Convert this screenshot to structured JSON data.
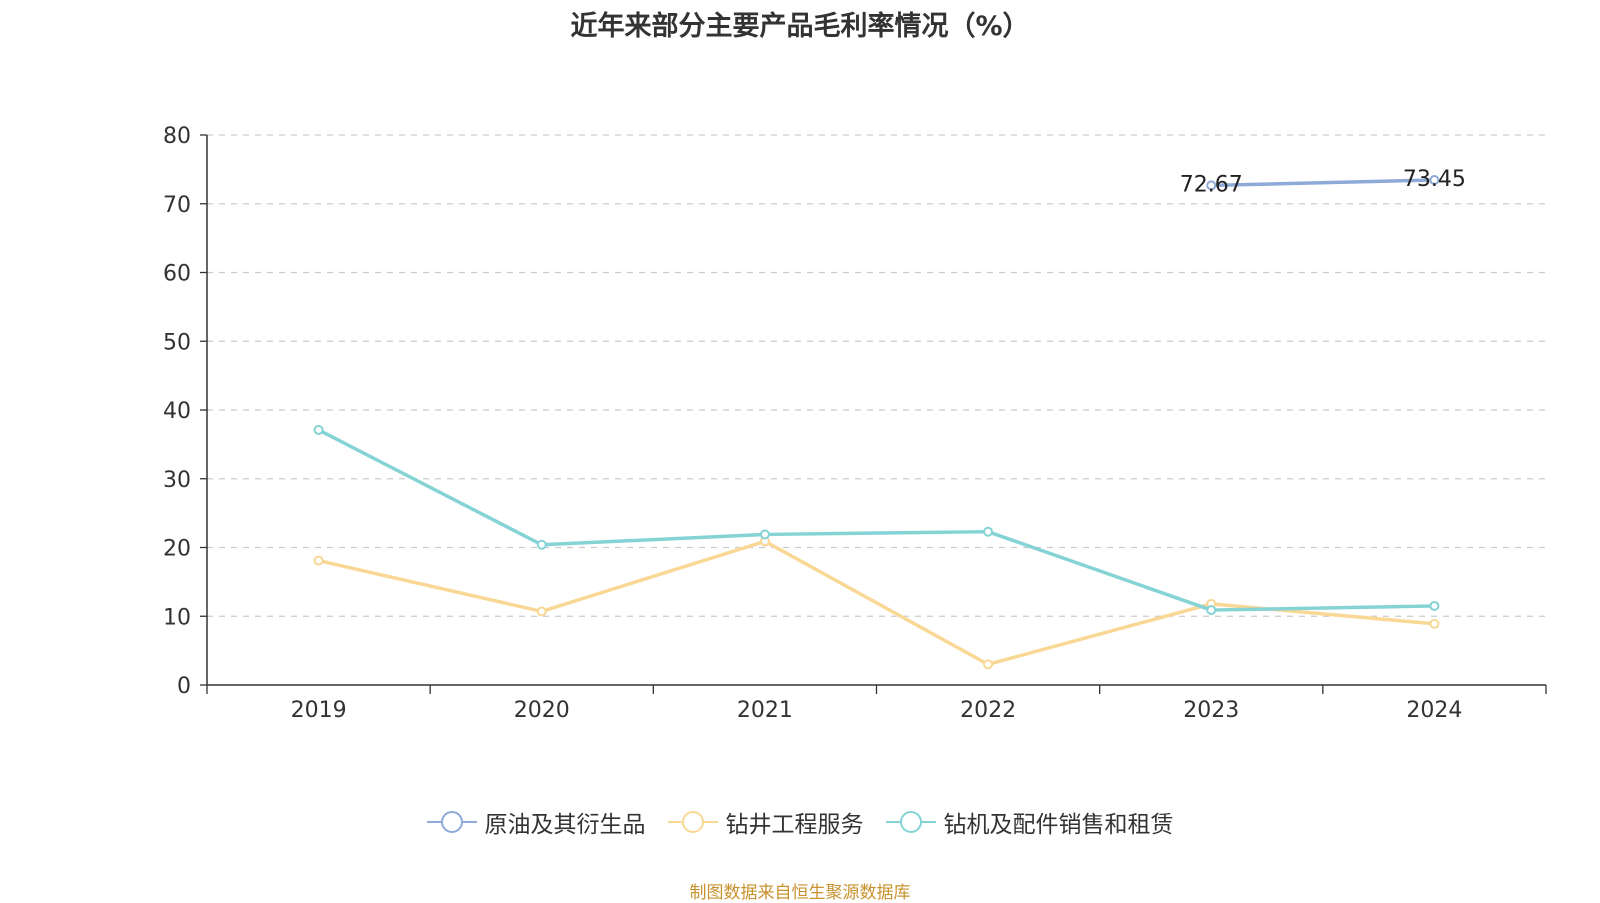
{
  "chart_data": {
    "type": "line",
    "title": "近年来部分主要产品毛利率情况（%）",
    "categories": [
      "2019",
      "2020",
      "2021",
      "2022",
      "2023",
      "2024"
    ],
    "ylim": [
      0,
      80
    ],
    "yticks": [
      "0",
      "10",
      "20",
      "30",
      "40",
      "50",
      "60",
      "70",
      "80"
    ],
    "grid": "horizontal-dashed",
    "legend_position": "bottom",
    "series": [
      {
        "name": "原油及其衍生品",
        "color": "#8eaad8",
        "values": [
          null,
          null,
          null,
          null,
          72.67,
          73.45
        ],
        "data_labels": [
          null,
          null,
          null,
          null,
          "72.67",
          "73.45"
        ]
      },
      {
        "name": "钻井工程服务",
        "color": "#f9d896",
        "values": [
          18.1,
          10.7,
          20.9,
          3.0,
          11.8,
          8.9
        ],
        "data_labels": [
          null,
          null,
          null,
          null,
          null,
          null
        ]
      },
      {
        "name": "钻机及配件销售和租赁",
        "color": "#85d3d5",
        "values": [
          37.1,
          20.4,
          21.9,
          22.3,
          10.9,
          11.5
        ],
        "data_labels": [
          null,
          null,
          null,
          null,
          null,
          null
        ]
      }
    ]
  },
  "source_note": "制图数据来自恒生聚源数据库",
  "source_note_color": "#c8922e"
}
